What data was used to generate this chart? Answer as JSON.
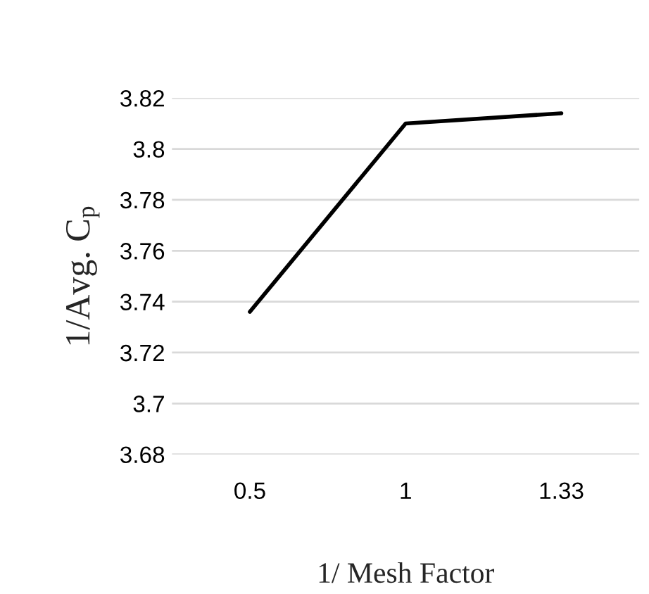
{
  "chart_data": {
    "type": "line",
    "categories": [
      "0.5",
      "1",
      "1.33"
    ],
    "series": [
      {
        "color": "#000000",
        "values": [
          3.736,
          3.81,
          3.814
        ]
      }
    ],
    "xlabel": "1/ Mesh Factor",
    "ylabel": "1/Avg. C$_{p}$",
    "ylim": [
      3.68,
      3.82
    ],
    "yticks": [
      3.68,
      3.7,
      3.72,
      3.74,
      3.76,
      3.78,
      3.8,
      3.82
    ],
    "grid": "y",
    "marker": "none",
    "line_style": "solid"
  }
}
